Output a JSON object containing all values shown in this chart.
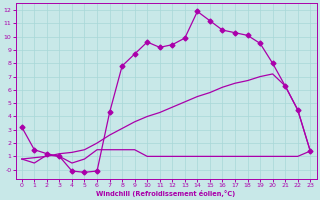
{
  "xlabel": "Windchill (Refroidissement éolien,°C)",
  "xlim": [
    -0.5,
    23.5
  ],
  "ylim": [
    -0.7,
    12.5
  ],
  "yticks": [
    0,
    1,
    2,
    3,
    4,
    5,
    6,
    7,
    8,
    9,
    10,
    11,
    12
  ],
  "xticks": [
    0,
    1,
    2,
    3,
    4,
    5,
    6,
    7,
    8,
    9,
    10,
    11,
    12,
    13,
    14,
    15,
    16,
    17,
    18,
    19,
    20,
    21,
    22,
    23
  ],
  "background_color": "#c8e8e8",
  "grid_color": "#a8d8d8",
  "line_color": "#aa00aa",
  "curve1_x": [
    0,
    1,
    2,
    3,
    4,
    5,
    6,
    7,
    8,
    9,
    10,
    11,
    12,
    13,
    14,
    15,
    16,
    17,
    18,
    19,
    20,
    21,
    22,
    23
  ],
  "curve1_y": [
    3.2,
    1.5,
    1.2,
    1.0,
    -0.1,
    -0.2,
    -0.1,
    4.3,
    7.8,
    8.7,
    9.6,
    9.2,
    9.4,
    9.9,
    11.9,
    11.2,
    10.5,
    10.3,
    10.1,
    9.5,
    8.0,
    6.3,
    4.5,
    1.4
  ],
  "curve2_x": [
    0,
    1,
    2,
    3,
    4,
    5,
    6,
    7,
    8,
    9,
    10,
    11,
    12,
    13,
    14,
    15,
    16,
    17,
    18,
    19,
    20,
    21,
    22,
    23
  ],
  "curve2_y": [
    0.8,
    0.9,
    1.0,
    1.2,
    1.3,
    1.5,
    2.0,
    2.6,
    3.1,
    3.6,
    4.0,
    4.3,
    4.7,
    5.1,
    5.5,
    5.8,
    6.2,
    6.5,
    6.7,
    7.0,
    7.2,
    6.3,
    4.5,
    1.4
  ],
  "curve3_x": [
    0,
    1,
    2,
    3,
    4,
    5,
    6,
    7,
    8,
    9,
    10,
    11,
    12,
    13,
    14,
    15,
    16,
    17,
    18,
    19,
    20,
    21,
    22,
    23
  ],
  "curve3_y": [
    0.8,
    0.5,
    1.1,
    1.0,
    0.5,
    0.8,
    1.5,
    1.5,
    1.5,
    1.5,
    1.0,
    1.0,
    1.0,
    1.0,
    1.0,
    1.0,
    1.0,
    1.0,
    1.0,
    1.0,
    1.0,
    1.0,
    1.0,
    1.4
  ]
}
